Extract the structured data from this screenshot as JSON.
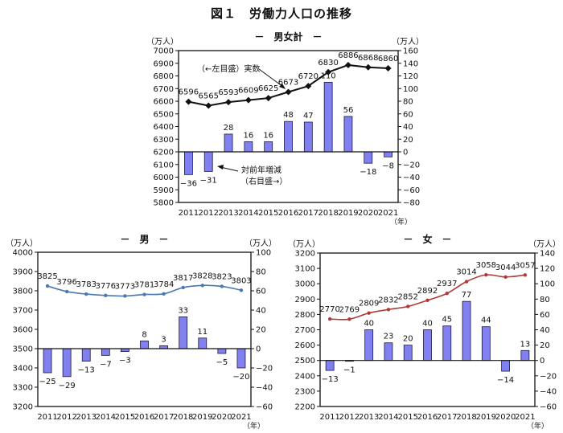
{
  "title": "図１　労働力人口の推移",
  "colors": {
    "bar": "#8080f0",
    "bar_border": "#1a1a40",
    "line_total": "#111111",
    "line_male": "#4a78b0",
    "line_female": "#b03a3a"
  },
  "chart_data": [
    {
      "type": "bar+line",
      "title": "－　男女計　－",
      "ylabel_left": "（万人）",
      "ylabel_right": "（万人）",
      "xlabel": "（年）",
      "categories": [
        "2011",
        "2012",
        "2013",
        "2014",
        "2015",
        "2016",
        "2017",
        "2018",
        "2019",
        "2020",
        "2021"
      ],
      "ylim_left": [
        5800,
        7000
      ],
      "yticks_left": [
        5800,
        5900,
        6000,
        6100,
        6200,
        6300,
        6400,
        6500,
        6600,
        6700,
        6800,
        6900,
        7000
      ],
      "ylim_right": [
        -80,
        160
      ],
      "yticks_right": [
        -80,
        -60,
        -40,
        -20,
        0,
        20,
        40,
        60,
        80,
        100,
        120,
        140,
        160
      ],
      "line": {
        "name": "実数",
        "axis": "left",
        "values": [
          6596,
          6565,
          6593,
          6609,
          6625,
          6673,
          6720,
          6830,
          6886,
          6868,
          6860
        ]
      },
      "bars": {
        "name": "対前年増減",
        "axis": "right",
        "values": [
          -36,
          -31,
          28,
          16,
          16,
          48,
          47,
          110,
          56,
          -18,
          -8
        ]
      },
      "annotations": {
        "line_note": "（←左目盛）実数",
        "bar_note_1": "対前年増減",
        "bar_note_2": "（右目盛→）"
      }
    },
    {
      "type": "bar+line",
      "title": "－　男　－",
      "ylabel_left": "（万人）",
      "ylabel_right": "（万人）",
      "xlabel": "（年）",
      "categories": [
        "2011",
        "2012",
        "2013",
        "2014",
        "2015",
        "2016",
        "2017",
        "2018",
        "2019",
        "2020",
        "2021"
      ],
      "ylim_left": [
        3200,
        4000
      ],
      "yticks_left": [
        3200,
        3300,
        3400,
        3500,
        3600,
        3700,
        3800,
        3900,
        4000
      ],
      "ylim_right": [
        -60,
        100
      ],
      "yticks_right": [
        -60,
        -40,
        -20,
        0,
        20,
        40,
        60,
        80,
        100
      ],
      "line": {
        "axis": "left",
        "values": [
          3825,
          3796,
          3783,
          3776,
          3773,
          3781,
          3784,
          3817,
          3828,
          3823,
          3803
        ]
      },
      "bars": {
        "axis": "right",
        "values": [
          -25,
          -29,
          -13,
          -7,
          -3,
          8,
          3,
          33,
          11,
          -5,
          -20
        ]
      }
    },
    {
      "type": "bar+line",
      "title": "－　女　－",
      "ylabel_left": "（万人）",
      "ylabel_right": "（万人）",
      "xlabel": "（年）",
      "categories": [
        "2011",
        "2012",
        "2013",
        "2014",
        "2015",
        "2016",
        "2017",
        "2018",
        "2019",
        "2020",
        "2021"
      ],
      "ylim_left": [
        2200,
        3200
      ],
      "yticks_left": [
        2200,
        2300,
        2400,
        2500,
        2600,
        2700,
        2800,
        2900,
        3000,
        3100,
        3200
      ],
      "ylim_right": [
        -60,
        140
      ],
      "yticks_right": [
        -60,
        -40,
        -20,
        0,
        20,
        40,
        60,
        80,
        100,
        120,
        140
      ],
      "line": {
        "axis": "left",
        "values": [
          2770,
          2769,
          2809,
          2832,
          2852,
          2892,
          2937,
          3014,
          3058,
          3044,
          3057
        ]
      },
      "bars": {
        "axis": "right",
        "values": [
          -13,
          -1,
          40,
          23,
          20,
          40,
          45,
          77,
          44,
          -14,
          13
        ]
      }
    }
  ]
}
